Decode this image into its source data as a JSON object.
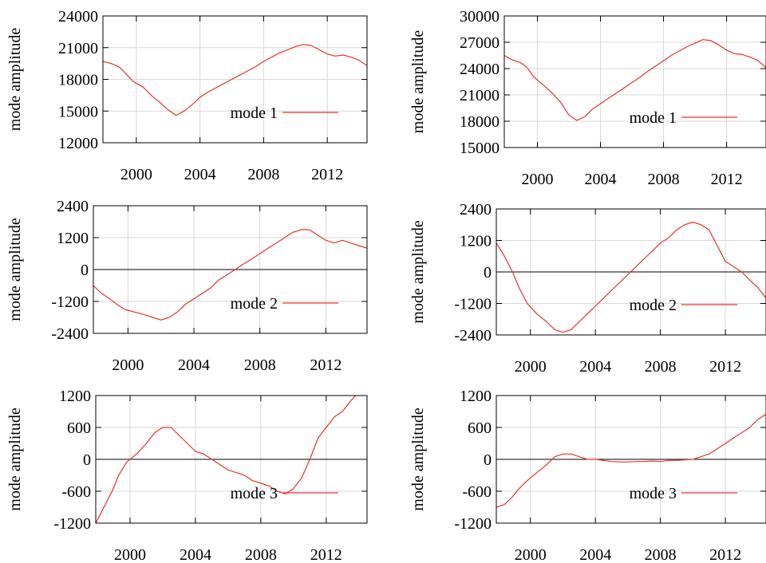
{
  "chart_data": [
    {
      "type": "line",
      "ylabel": "mode amplitude",
      "ylim": [
        12000,
        24000
      ],
      "yticks": [
        12000,
        15000,
        18000,
        21000,
        24000
      ],
      "xlim": [
        1997.9,
        2014.5
      ],
      "xticks": [
        2000,
        2004,
        2008,
        2012
      ],
      "zero_line": false,
      "grid": true,
      "legend_position": "lower-right",
      "series": [
        {
          "name": "mode 1",
          "color": "#e8342a",
          "points": [
            [
              1997.9,
              19700
            ],
            [
              1998.4,
              19500
            ],
            [
              1998.9,
              19200
            ],
            [
              1999.3,
              18600
            ],
            [
              1999.8,
              17800
            ],
            [
              2000.4,
              17300
            ],
            [
              2001.0,
              16400
            ],
            [
              2001.5,
              15800
            ],
            [
              2002.0,
              15100
            ],
            [
              2002.5,
              14600
            ],
            [
              2003.0,
              15000
            ],
            [
              2003.5,
              15600
            ],
            [
              2004.0,
              16300
            ],
            [
              2004.5,
              16800
            ],
            [
              2005.0,
              17200
            ],
            [
              2005.5,
              17600
            ],
            [
              2006.0,
              18000
            ],
            [
              2006.5,
              18400
            ],
            [
              2007.0,
              18800
            ],
            [
              2007.5,
              19200
            ],
            [
              2008.0,
              19700
            ],
            [
              2008.5,
              20100
            ],
            [
              2009.0,
              20500
            ],
            [
              2009.5,
              20800
            ],
            [
              2010.0,
              21100
            ],
            [
              2010.5,
              21300
            ],
            [
              2011.0,
              21200
            ],
            [
              2011.5,
              20800
            ],
            [
              2012.0,
              20400
            ],
            [
              2012.5,
              20200
            ],
            [
              2013.0,
              20300
            ],
            [
              2013.5,
              20100
            ],
            [
              2014.0,
              19800
            ],
            [
              2014.5,
              19300
            ]
          ]
        }
      ]
    },
    {
      "type": "line",
      "ylabel": "mode amplitude",
      "ylim": [
        15000,
        30000
      ],
      "yticks": [
        15000,
        18000,
        21000,
        24000,
        27000,
        30000
      ],
      "xlim": [
        1997.9,
        2014.5
      ],
      "xticks": [
        2000,
        2004,
        2008,
        2012
      ],
      "zero_line": false,
      "grid": true,
      "legend_position": "lower-right",
      "series": [
        {
          "name": "mode 1",
          "color": "#e8342a",
          "points": [
            [
              1997.9,
              25500
            ],
            [
              1998.4,
              25000
            ],
            [
              1998.9,
              24700
            ],
            [
              1999.3,
              24200
            ],
            [
              1999.8,
              23000
            ],
            [
              2000.4,
              22100
            ],
            [
              2001.0,
              21100
            ],
            [
              2001.5,
              20100
            ],
            [
              2002.0,
              18700
            ],
            [
              2002.5,
              18100
            ],
            [
              2003.0,
              18500
            ],
            [
              2003.5,
              19400
            ],
            [
              2004.0,
              20000
            ],
            [
              2004.5,
              20600
            ],
            [
              2005.0,
              21200
            ],
            [
              2005.5,
              21800
            ],
            [
              2006.0,
              22400
            ],
            [
              2006.5,
              23000
            ],
            [
              2007.0,
              23700
            ],
            [
              2007.5,
              24300
            ],
            [
              2008.0,
              24900
            ],
            [
              2008.5,
              25500
            ],
            [
              2009.0,
              26000
            ],
            [
              2009.5,
              26500
            ],
            [
              2010.0,
              26900
            ],
            [
              2010.5,
              27300
            ],
            [
              2011.0,
              27200
            ],
            [
              2011.5,
              26700
            ],
            [
              2012.0,
              26100
            ],
            [
              2012.5,
              25700
            ],
            [
              2013.0,
              25600
            ],
            [
              2013.5,
              25300
            ],
            [
              2014.0,
              24900
            ],
            [
              2014.5,
              24100
            ]
          ]
        }
      ]
    },
    {
      "type": "line",
      "ylabel": "mode amplitude",
      "ylim": [
        -2400,
        2400
      ],
      "yticks": [
        -2400,
        -1200,
        0,
        1200,
        2400
      ],
      "xlim": [
        1997.9,
        2014.5
      ],
      "xticks": [
        2000,
        2004,
        2008,
        2012
      ],
      "zero_line": true,
      "grid": true,
      "legend_position": "lower-right",
      "series": [
        {
          "name": "mode 2",
          "color": "#e8342a",
          "points": [
            [
              1997.9,
              -600
            ],
            [
              1998.4,
              -900
            ],
            [
              1998.9,
              -1100
            ],
            [
              1999.3,
              -1300
            ],
            [
              1999.8,
              -1500
            ],
            [
              2000.4,
              -1600
            ],
            [
              2001.0,
              -1700
            ],
            [
              2001.5,
              -1800
            ],
            [
              2002.0,
              -1900
            ],
            [
              2002.5,
              -1800
            ],
            [
              2003.0,
              -1600
            ],
            [
              2003.5,
              -1300
            ],
            [
              2004.0,
              -1100
            ],
            [
              2004.5,
              -900
            ],
            [
              2005.0,
              -700
            ],
            [
              2005.5,
              -400
            ],
            [
              2006.0,
              -200
            ],
            [
              2006.5,
              0
            ],
            [
              2007.0,
              200
            ],
            [
              2007.5,
              400
            ],
            [
              2008.0,
              600
            ],
            [
              2008.5,
              800
            ],
            [
              2009.0,
              1000
            ],
            [
              2009.5,
              1200
            ],
            [
              2010.0,
              1400
            ],
            [
              2010.5,
              1500
            ],
            [
              2011.0,
              1500
            ],
            [
              2011.5,
              1300
            ],
            [
              2012.0,
              1100
            ],
            [
              2012.5,
              1000
            ],
            [
              2013.0,
              1100
            ],
            [
              2013.5,
              1000
            ],
            [
              2014.0,
              900
            ],
            [
              2014.5,
              800
            ]
          ]
        }
      ]
    },
    {
      "type": "line",
      "ylabel": "mode amplitude",
      "ylim": [
        -2400,
        2400
      ],
      "yticks": [
        -2400,
        -1200,
        0,
        1200,
        2400
      ],
      "xlim": [
        1997.9,
        2014.5
      ],
      "xticks": [
        2000,
        2004,
        2008,
        2012
      ],
      "zero_line": true,
      "grid": true,
      "legend_position": "lower-right",
      "series": [
        {
          "name": "mode 2",
          "color": "#e8342a",
          "points": [
            [
              1997.9,
              1100
            ],
            [
              1998.4,
              600
            ],
            [
              1998.9,
              0
            ],
            [
              1999.3,
              -600
            ],
            [
              1999.8,
              -1200
            ],
            [
              2000.4,
              -1600
            ],
            [
              2001.0,
              -1900
            ],
            [
              2001.5,
              -2200
            ],
            [
              2002.0,
              -2300
            ],
            [
              2002.5,
              -2200
            ],
            [
              2003.0,
              -1900
            ],
            [
              2003.5,
              -1600
            ],
            [
              2004.0,
              -1300
            ],
            [
              2004.5,
              -1000
            ],
            [
              2005.0,
              -700
            ],
            [
              2005.5,
              -400
            ],
            [
              2006.0,
              -100
            ],
            [
              2006.5,
              200
            ],
            [
              2007.0,
              500
            ],
            [
              2007.5,
              800
            ],
            [
              2008.0,
              1100
            ],
            [
              2008.5,
              1300
            ],
            [
              2009.0,
              1600
            ],
            [
              2009.5,
              1800
            ],
            [
              2010.0,
              1900
            ],
            [
              2010.5,
              1800
            ],
            [
              2011.0,
              1600
            ],
            [
              2011.5,
              1000
            ],
            [
              2012.0,
              400
            ],
            [
              2012.5,
              200
            ],
            [
              2013.0,
              0
            ],
            [
              2013.5,
              -300
            ],
            [
              2014.0,
              -600
            ],
            [
              2014.5,
              -1000
            ]
          ]
        }
      ]
    },
    {
      "type": "line",
      "ylabel": "mode amplitude",
      "ylim": [
        -1200,
        1200
      ],
      "yticks": [
        -1200,
        -600,
        0,
        600,
        1200
      ],
      "xlim": [
        1997.9,
        2014.5
      ],
      "xticks": [
        2000,
        2004,
        2008,
        2012
      ],
      "zero_line": true,
      "grid": true,
      "legend_position": "lower-right",
      "series": [
        {
          "name": "mode 3",
          "color": "#e8342a",
          "points": [
            [
              1997.9,
              -1200
            ],
            [
              1998.4,
              -900
            ],
            [
              1998.9,
              -600
            ],
            [
              1999.3,
              -300
            ],
            [
              1999.8,
              -50
            ],
            [
              2000.4,
              100
            ],
            [
              2001.0,
              300
            ],
            [
              2001.5,
              500
            ],
            [
              2002.0,
              600
            ],
            [
              2002.5,
              600
            ],
            [
              2003.0,
              450
            ],
            [
              2003.5,
              300
            ],
            [
              2004.0,
              150
            ],
            [
              2004.5,
              100
            ],
            [
              2005.0,
              0
            ],
            [
              2005.5,
              -100
            ],
            [
              2006.0,
              -200
            ],
            [
              2006.5,
              -250
            ],
            [
              2007.0,
              -300
            ],
            [
              2007.5,
              -400
            ],
            [
              2008.0,
              -450
            ],
            [
              2008.5,
              -500
            ],
            [
              2009.0,
              -600
            ],
            [
              2009.5,
              -650
            ],
            [
              2010.0,
              -550
            ],
            [
              2010.5,
              -350
            ],
            [
              2011.0,
              0
            ],
            [
              2011.5,
              400
            ],
            [
              2012.0,
              600
            ],
            [
              2012.5,
              800
            ],
            [
              2013.0,
              900
            ],
            [
              2013.5,
              1100
            ],
            [
              2013.8,
              1200
            ]
          ]
        }
      ]
    },
    {
      "type": "line",
      "ylabel": "mode amplitude",
      "ylim": [
        -1200,
        1200
      ],
      "yticks": [
        -1200,
        -600,
        0,
        600,
        1200
      ],
      "xlim": [
        1997.9,
        2014.5
      ],
      "xticks": [
        2000,
        2004,
        2008,
        2012
      ],
      "zero_line": true,
      "grid": true,
      "legend_position": "lower-right",
      "series": [
        {
          "name": "mode 3",
          "color": "#e8342a",
          "points": [
            [
              1997.9,
              -900
            ],
            [
              1998.4,
              -850
            ],
            [
              1998.9,
              -700
            ],
            [
              1999.3,
              -550
            ],
            [
              1999.8,
              -400
            ],
            [
              2000.4,
              -250
            ],
            [
              2001.0,
              -100
            ],
            [
              2001.5,
              50
            ],
            [
              2002.0,
              100
            ],
            [
              2002.5,
              100
            ],
            [
              2003.0,
              50
            ],
            [
              2003.5,
              0
            ],
            [
              2004.0,
              0
            ],
            [
              2004.5,
              -20
            ],
            [
              2005.0,
              -40
            ],
            [
              2005.5,
              -50
            ],
            [
              2006.0,
              -50
            ],
            [
              2006.5,
              -40
            ],
            [
              2007.0,
              -40
            ],
            [
              2007.5,
              -30
            ],
            [
              2008.0,
              -40
            ],
            [
              2008.5,
              -20
            ],
            [
              2009.0,
              -20
            ],
            [
              2009.5,
              -10
            ],
            [
              2010.0,
              0
            ],
            [
              2010.5,
              50
            ],
            [
              2011.0,
              100
            ],
            [
              2011.5,
              200
            ],
            [
              2012.0,
              300
            ],
            [
              2012.5,
              400
            ],
            [
              2013.0,
              500
            ],
            [
              2013.5,
              600
            ],
            [
              2014.0,
              750
            ],
            [
              2014.5,
              850
            ]
          ]
        }
      ]
    }
  ]
}
